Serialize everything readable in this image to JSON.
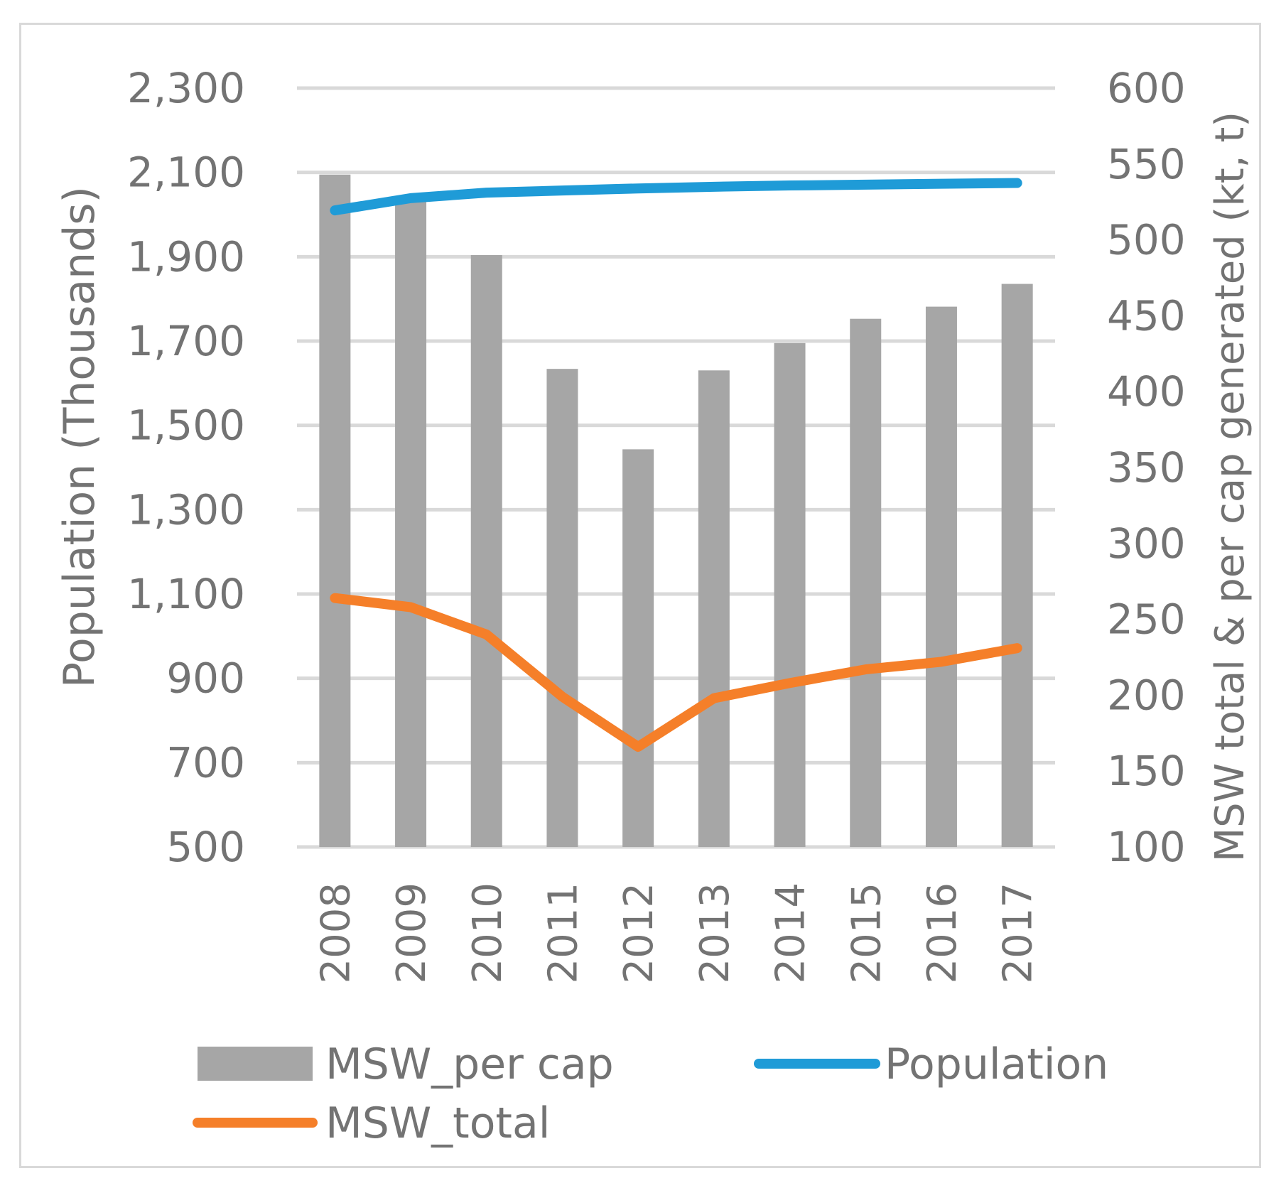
{
  "chart_data": {
    "type": "bar",
    "title": "",
    "categories": [
      "2008",
      "2009",
      "2010",
      "2011",
      "2012",
      "2013",
      "2014",
      "2015",
      "2016",
      "2017"
    ],
    "series": [
      {
        "name": "MSW_per cap",
        "type": "bar",
        "axis": "right",
        "color": "#a6a6a6",
        "values": [
          543,
          527,
          490,
          415,
          362,
          414,
          432,
          448,
          456,
          471
        ]
      },
      {
        "name": "Population",
        "type": "line",
        "axis": "left",
        "color": "#1f9bd7",
        "values": [
          2010,
          2039,
          2052,
          2057,
          2062,
          2066,
          2069,
          2071,
          2073,
          2075
        ]
      },
      {
        "name": "MSW_total",
        "type": "line",
        "axis": "right",
        "color": "#f57f29",
        "values": [
          264,
          258,
          240,
          199,
          166,
          198,
          208,
          217,
          222,
          231
        ]
      }
    ],
    "y_left": {
      "label": "Population (Thousands)",
      "range": [
        500,
        2300
      ],
      "ticks": [
        "500",
        "700",
        "900",
        "1,100",
        "1,300",
        "1,500",
        "1,700",
        "1,900",
        "2,100",
        "2,300"
      ]
    },
    "y_right": {
      "label": "MSW total & per cap generated (kt, t)",
      "range": [
        100,
        600
      ],
      "ticks": [
        "100",
        "150",
        "200",
        "250",
        "300",
        "350",
        "400",
        "450",
        "500",
        "550",
        "600"
      ]
    },
    "x_label": "",
    "grid": true,
    "legend": {
      "position": "bottom",
      "entries": [
        "MSW_per cap",
        "Population",
        "MSW_total"
      ]
    }
  }
}
